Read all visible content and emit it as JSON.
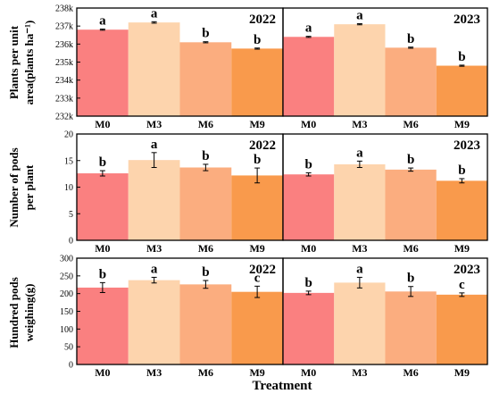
{
  "treatment_label": "Treatment",
  "row_labels": [
    {
      "line1": "Plants per unit",
      "line2": "area(plants ha⁻¹)"
    },
    {
      "line1": "Number of pods",
      "line2": "per plant"
    },
    {
      "line1": "Hundred pods",
      "line2": "weighing(g)"
    }
  ],
  "colors": {
    "M0": "#fa8080",
    "M3": "#fdd4ad",
    "M6": "#fbad7f",
    "M9": "#f99a4c",
    "axis": "#000000"
  },
  "chart_data": [
    {
      "type": "bar",
      "panel": "plants-2022",
      "title": "2022",
      "categories": [
        "M0",
        "M3",
        "M6",
        "M9"
      ],
      "values": [
        236800,
        237200,
        236100,
        235750
      ],
      "errors": [
        30,
        40,
        30,
        30
      ],
      "letters": [
        "a",
        "a",
        "b",
        "b"
      ],
      "ylim": [
        232000,
        238000
      ],
      "yticks": [
        232000,
        233000,
        234000,
        235000,
        236000,
        237000,
        238000
      ],
      "ytick_labels": [
        "232k",
        "233k",
        "234k",
        "235k",
        "236k",
        "237k",
        "238k"
      ]
    },
    {
      "type": "bar",
      "panel": "plants-2023",
      "title": "2023",
      "categories": [
        "M0",
        "M3",
        "M6",
        "M9"
      ],
      "values": [
        236400,
        237100,
        235800,
        234800
      ],
      "errors": [
        30,
        30,
        30,
        30
      ],
      "letters": [
        "a",
        "a",
        "b",
        "b"
      ],
      "ylim": [
        232000,
        238000
      ],
      "yticks": [
        232000,
        233000,
        234000,
        235000,
        236000,
        237000,
        238000
      ],
      "ytick_labels": []
    },
    {
      "type": "bar",
      "panel": "pods-2022",
      "title": "2022",
      "categories": [
        "M0",
        "M3",
        "M6",
        "M9"
      ],
      "values": [
        12.6,
        15.1,
        13.7,
        12.2
      ],
      "errors": [
        0.5,
        1.4,
        0.6,
        1.4
      ],
      "letters": [
        "b",
        "a",
        "b",
        "b"
      ],
      "ylim": [
        0,
        20
      ],
      "yticks": [
        0,
        5,
        10,
        15,
        20
      ],
      "ytick_labels": [
        "0",
        "5",
        "10",
        "15",
        "20"
      ]
    },
    {
      "type": "bar",
      "panel": "pods-2023",
      "title": "2023",
      "categories": [
        "M0",
        "M3",
        "M6",
        "M9"
      ],
      "values": [
        12.4,
        14.3,
        13.3,
        11.2
      ],
      "errors": [
        0.3,
        0.6,
        0.3,
        0.4
      ],
      "letters": [
        "b",
        "a",
        "b",
        "b"
      ],
      "ylim": [
        0,
        20
      ],
      "yticks": [
        0,
        5,
        10,
        15,
        20
      ],
      "ytick_labels": []
    },
    {
      "type": "bar",
      "panel": "weight-2022",
      "title": "2022",
      "categories": [
        "M0",
        "M3",
        "M6",
        "M9"
      ],
      "values": [
        217,
        238,
        226,
        205
      ],
      "errors": [
        14,
        8,
        11,
        16
      ],
      "letters": [
        "b",
        "a",
        "b",
        "c"
      ],
      "ylim": [
        0,
        300
      ],
      "yticks": [
        0,
        50,
        100,
        150,
        200,
        250,
        300
      ],
      "ytick_labels": [
        "0",
        "50",
        "100",
        "150",
        "200",
        "250",
        "300"
      ]
    },
    {
      "type": "bar",
      "panel": "weight-2023",
      "title": "2023",
      "categories": [
        "M0",
        "M3",
        "M6",
        "M9"
      ],
      "values": [
        202,
        231,
        206,
        197
      ],
      "errors": [
        5,
        15,
        14,
        5
      ],
      "letters": [
        "b",
        "a",
        "b",
        "c"
      ],
      "ylim": [
        0,
        300
      ],
      "yticks": [
        0,
        50,
        100,
        150,
        200,
        250,
        300
      ],
      "ytick_labels": []
    }
  ]
}
